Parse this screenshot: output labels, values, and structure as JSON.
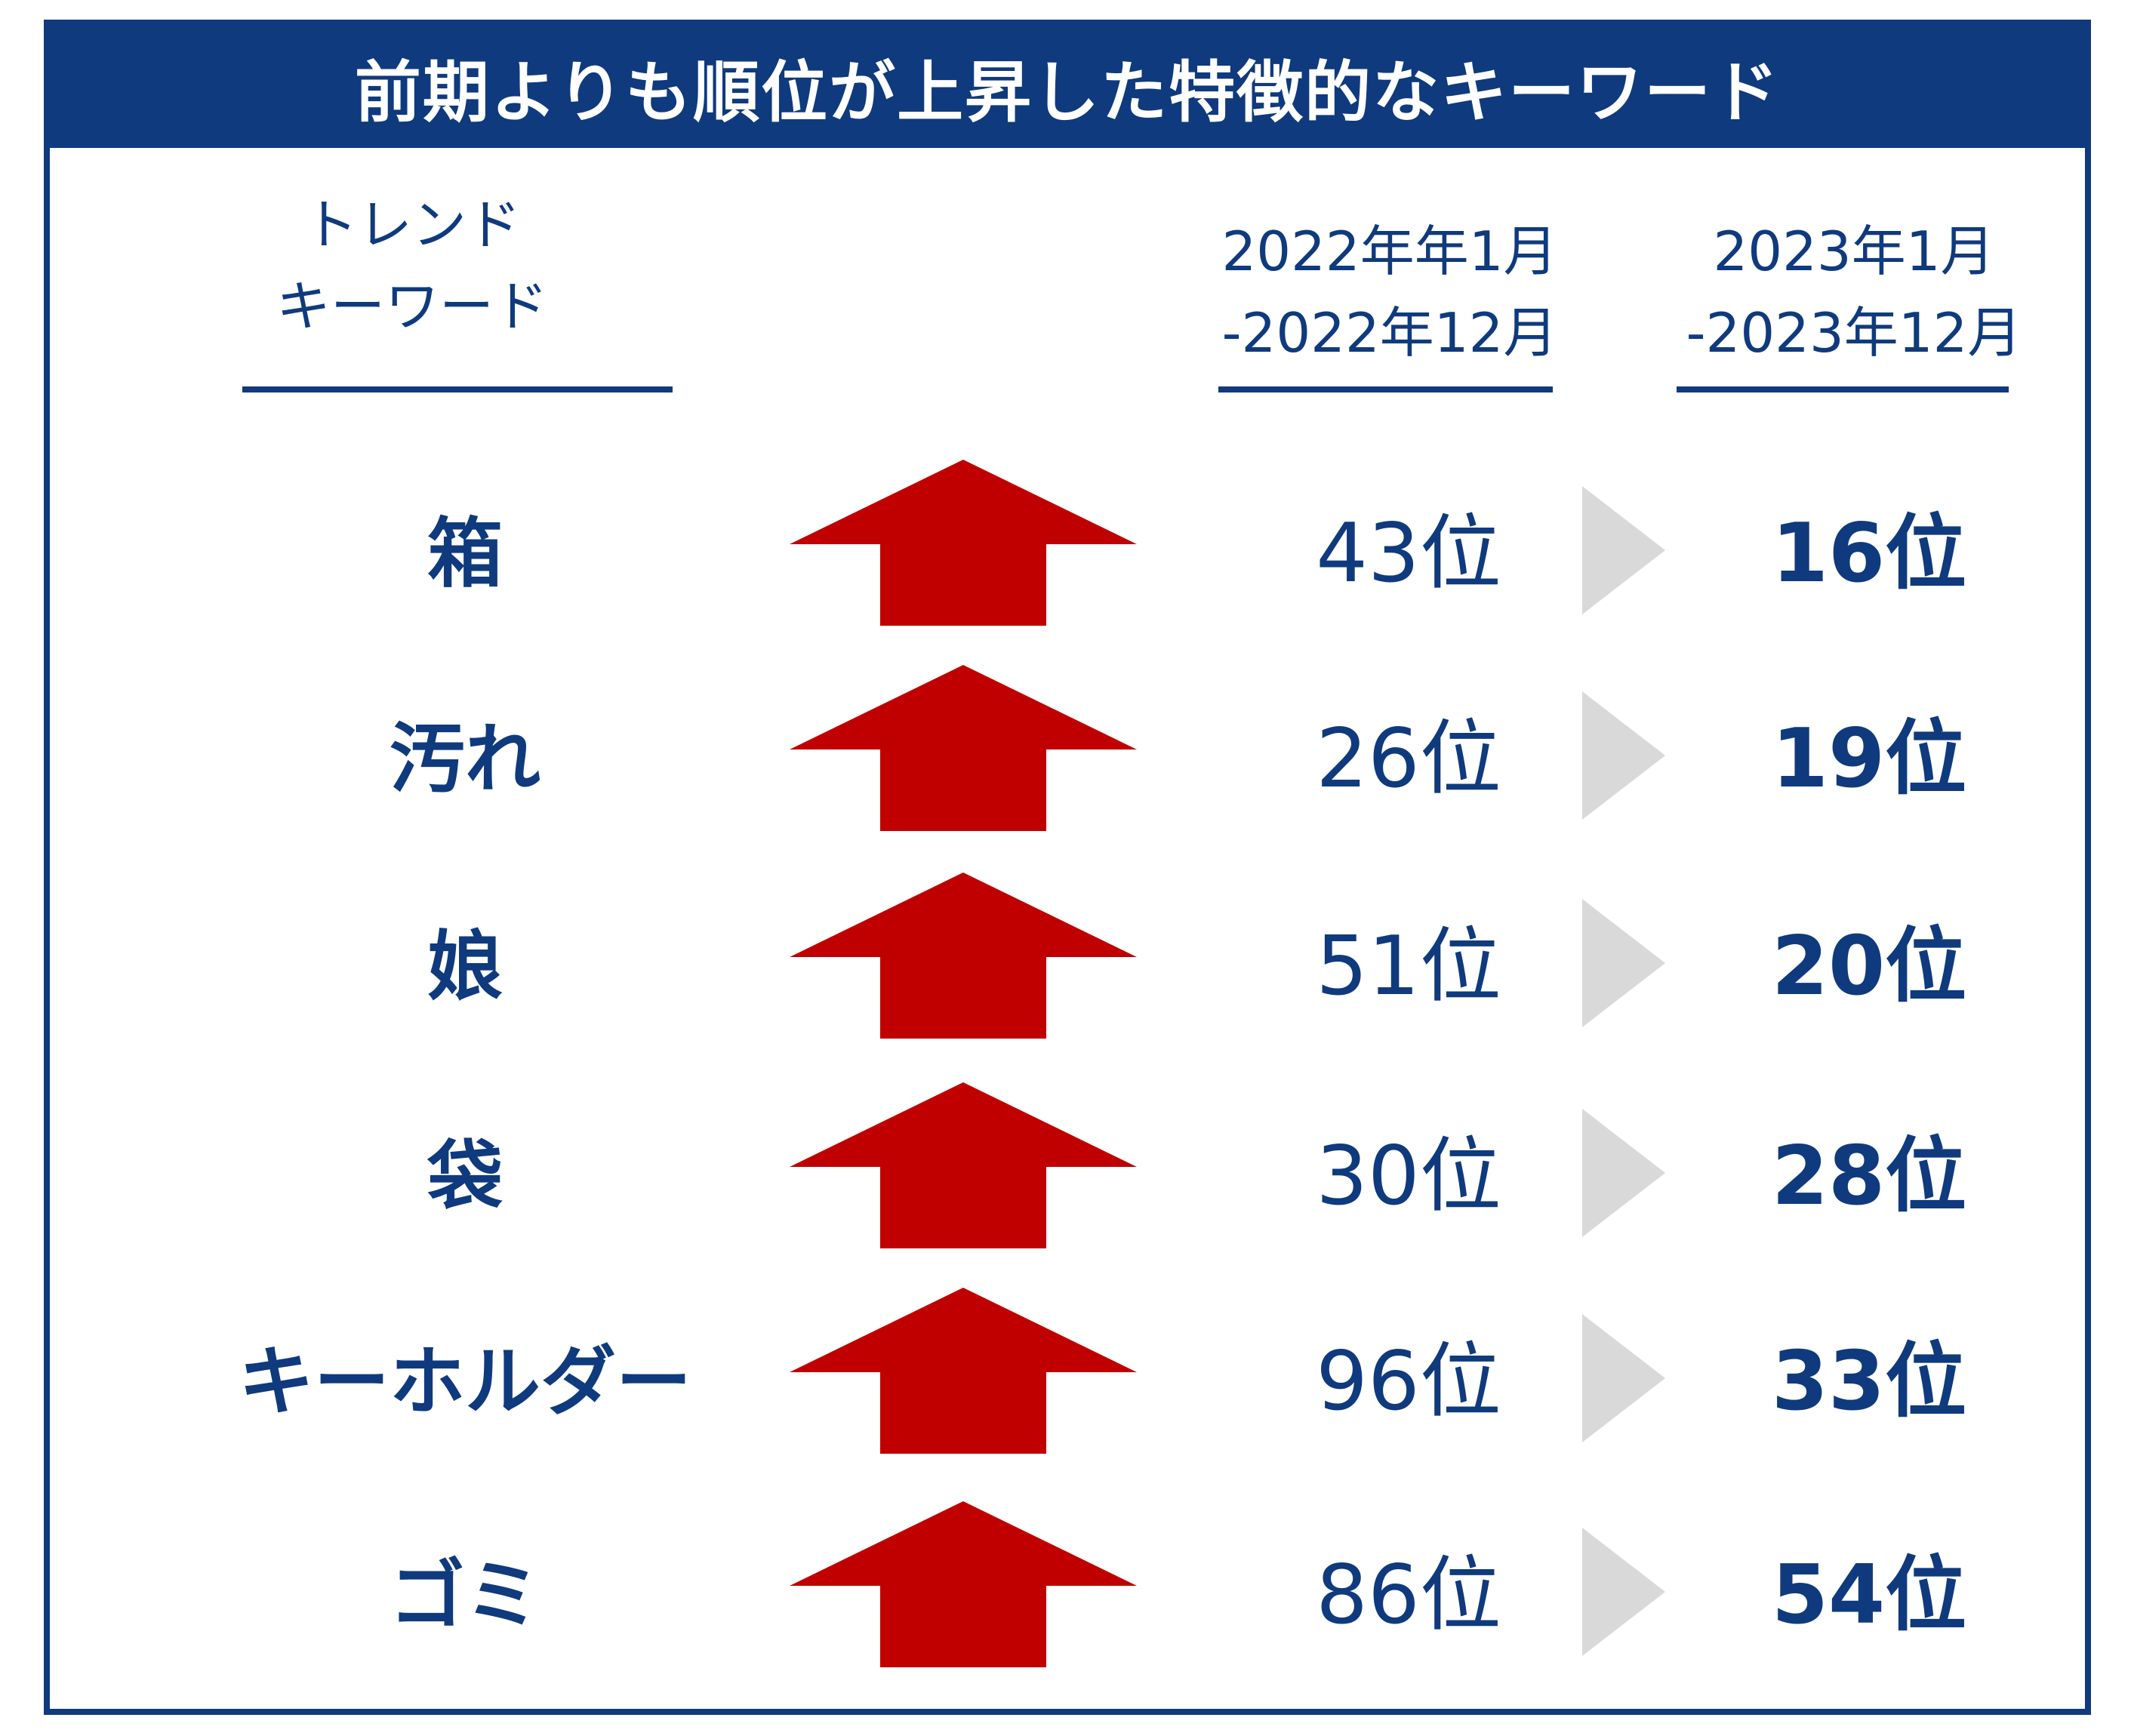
{
  "title": "前期よりも順位が上昇した特徴的なキーワード",
  "headers": {
    "keyword_line1": "トレンド",
    "keyword_line2": "キーワード",
    "prev_line1": "2022年年1月",
    "prev_line2": "-2022年12月",
    "cur_line1": "2023年1月",
    "cur_line2": "-2023年12月"
  },
  "rows": [
    {
      "keyword": "箱",
      "prev": "43位",
      "cur": "16位"
    },
    {
      "keyword": "汚れ",
      "prev": "26位",
      "cur": "19位"
    },
    {
      "keyword": "娘",
      "prev": "51位",
      "cur": "20位"
    },
    {
      "keyword": "袋",
      "prev": "30位",
      "cur": "28位"
    },
    {
      "keyword": "キーホルダー",
      "prev": "96位",
      "cur": "33位"
    },
    {
      "keyword": "ゴミ",
      "prev": "86位",
      "cur": "54位"
    }
  ],
  "icons": {
    "rank_change": "up-arrow-icon",
    "separator": "chevron-right-icon"
  },
  "colors": {
    "navy": "#0f3a7d",
    "arrow_red": "#c00000",
    "chevron_gray": "#d9d9d9"
  }
}
